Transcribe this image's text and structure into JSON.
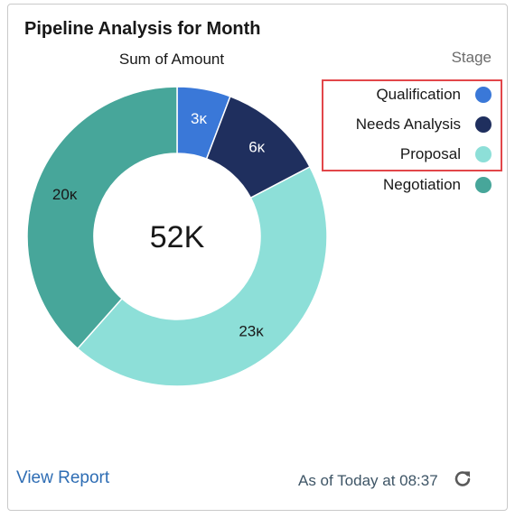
{
  "card": {
    "title": "Pipeline Analysis for Month",
    "view_report_label": "View Report",
    "timestamp": "As of Today at 08:37",
    "refresh_icon": "refresh-icon"
  },
  "chart_data": {
    "type": "pie",
    "variant": "donut",
    "title": "Sum of Amount",
    "center_label": "52Κ",
    "legend_title": "Stage",
    "legend_position": "top-right",
    "categories": [
      "Qualification",
      "Needs Analysis",
      "Proposal",
      "Negotiation"
    ],
    "values": [
      3,
      6,
      23,
      20
    ],
    "value_labels": [
      "3κ",
      "6κ",
      "23κ",
      "20κ"
    ],
    "colors": [
      "#3a78d8",
      "#1f2f5e",
      "#8ddfd8",
      "#47a69a"
    ],
    "label_colors": [
      "#ffffff",
      "#ffffff",
      "#181818",
      "#181818"
    ],
    "highlighted_legend_items": [
      "Qualification",
      "Needs Analysis",
      "Proposal"
    ],
    "highlight_color": "#e2464a"
  }
}
